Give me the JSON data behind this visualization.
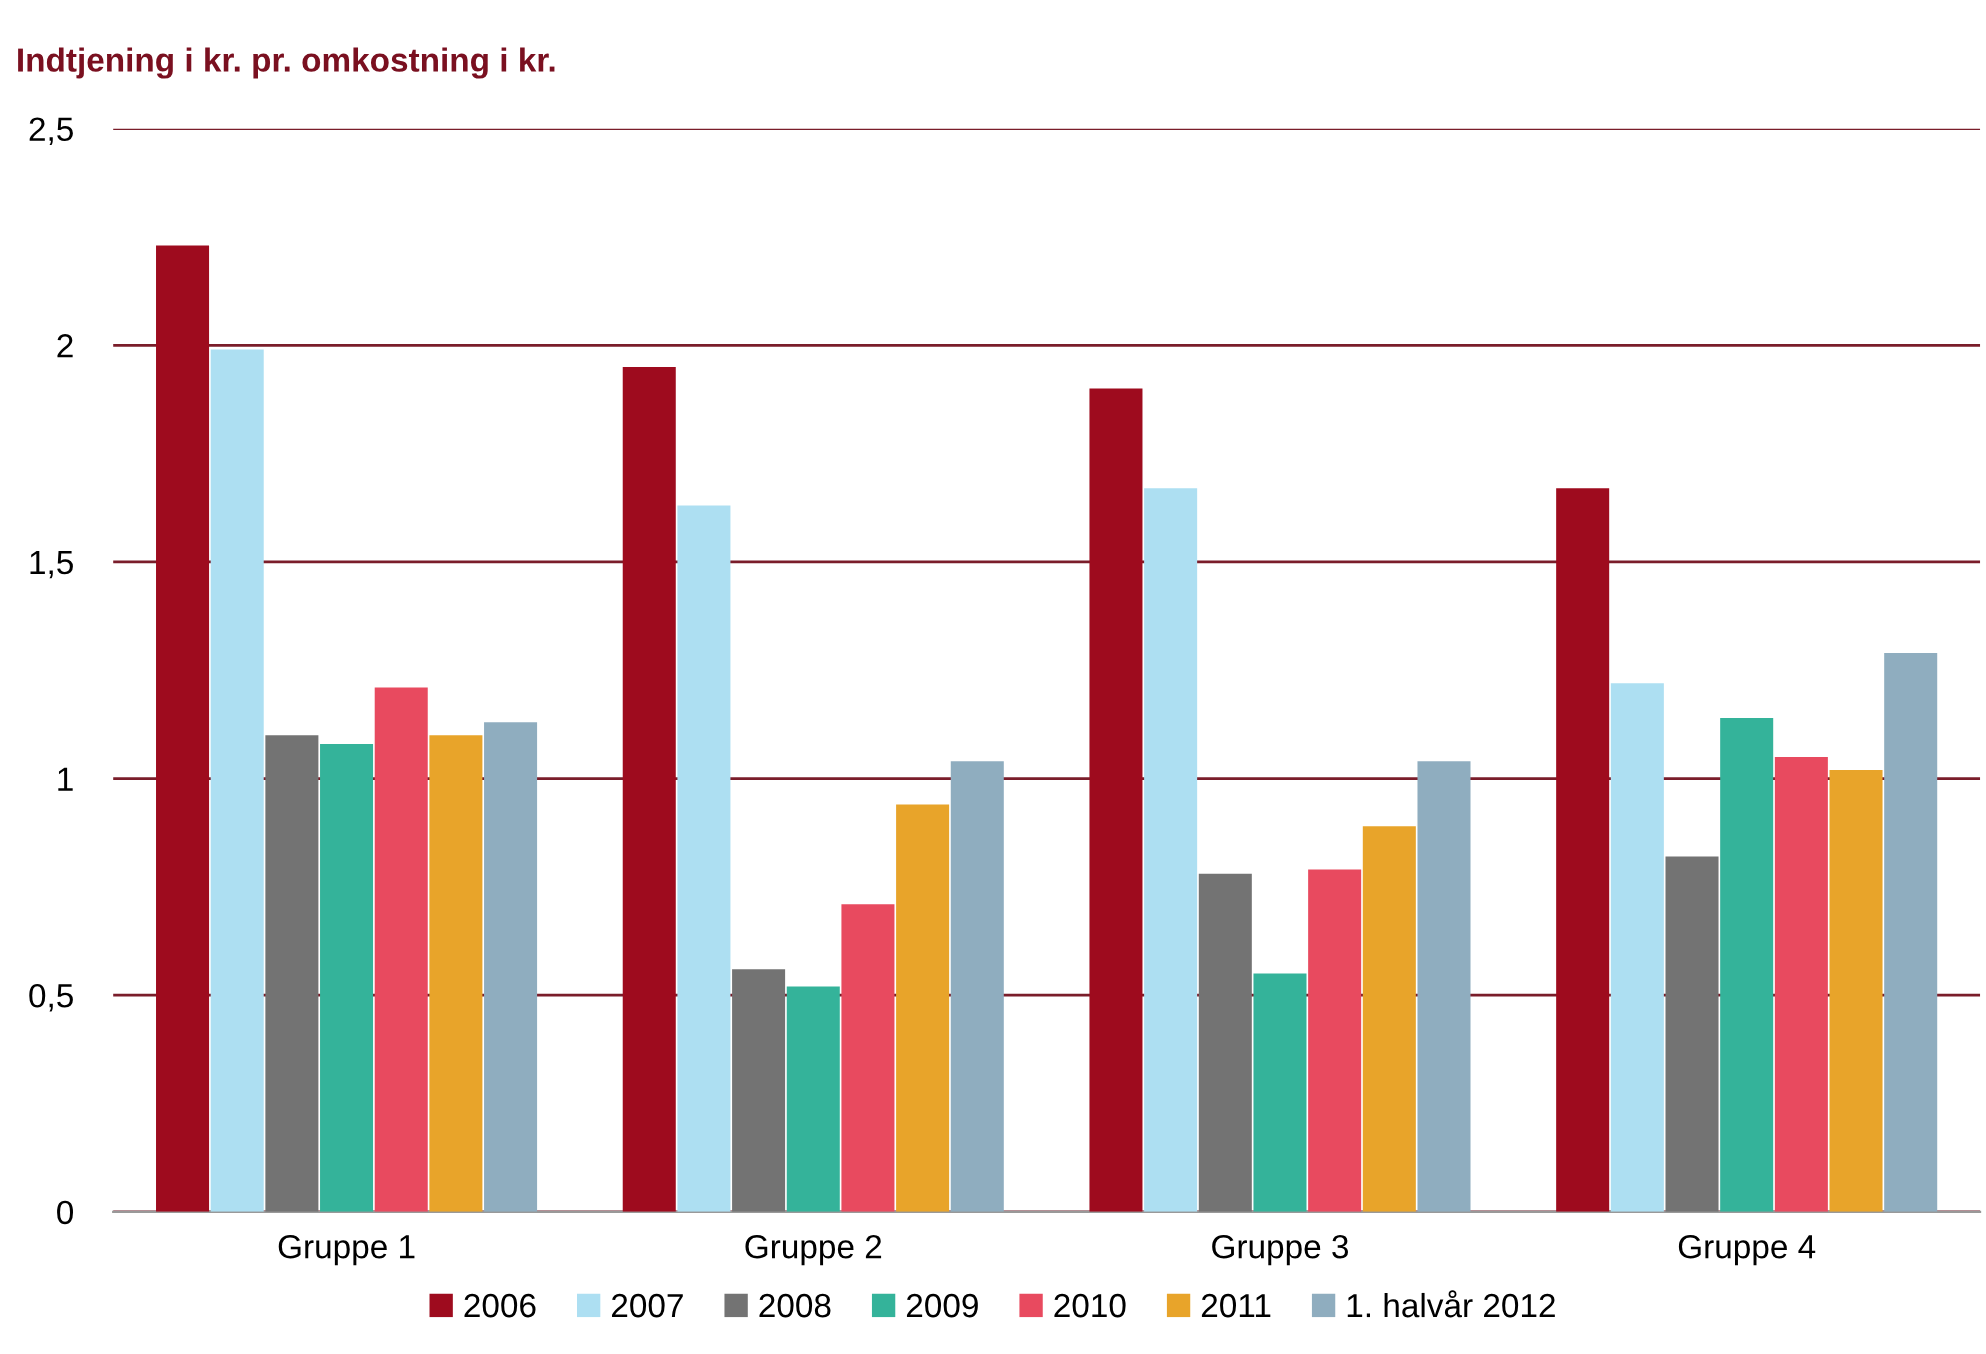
{
  "chart_data": {
    "type": "bar",
    "title": "Indtjening i kr. pr. omkostning i kr.",
    "categories": [
      "Gruppe 1",
      "Gruppe 2",
      "Gruppe 3",
      "Gruppe 4"
    ],
    "series": [
      {
        "name": "2006",
        "color": "#9e0b1e",
        "values": [
          2.23,
          1.95,
          1.9,
          1.67
        ]
      },
      {
        "name": "2007",
        "color": "#addff2",
        "values": [
          1.99,
          1.63,
          1.67,
          1.22
        ]
      },
      {
        "name": "2008",
        "color": "#737373",
        "values": [
          1.1,
          0.56,
          0.78,
          0.82
        ]
      },
      {
        "name": "2009",
        "color": "#34b39a",
        "values": [
          1.08,
          0.52,
          0.55,
          1.14
        ]
      },
      {
        "name": "2010",
        "color": "#e84a5f",
        "values": [
          1.21,
          0.71,
          0.79,
          1.05
        ]
      },
      {
        "name": "2011",
        "color": "#e8a42a",
        "values": [
          1.1,
          0.94,
          0.89,
          1.02
        ]
      },
      {
        "name": "1. halvår 2012",
        "color": "#8fadbf",
        "values": [
          1.13,
          1.04,
          1.04,
          1.29
        ]
      }
    ],
    "ylim": [
      0,
      2.5
    ],
    "yticks": [
      0,
      {
        "value": 0.5,
        "label": "0,5"
      },
      1,
      {
        "value": 1.5,
        "label": "1,5"
      },
      2,
      {
        "value": 2.5,
        "label": "2,5"
      }
    ],
    "grid": "y",
    "legend": "bottom"
  }
}
